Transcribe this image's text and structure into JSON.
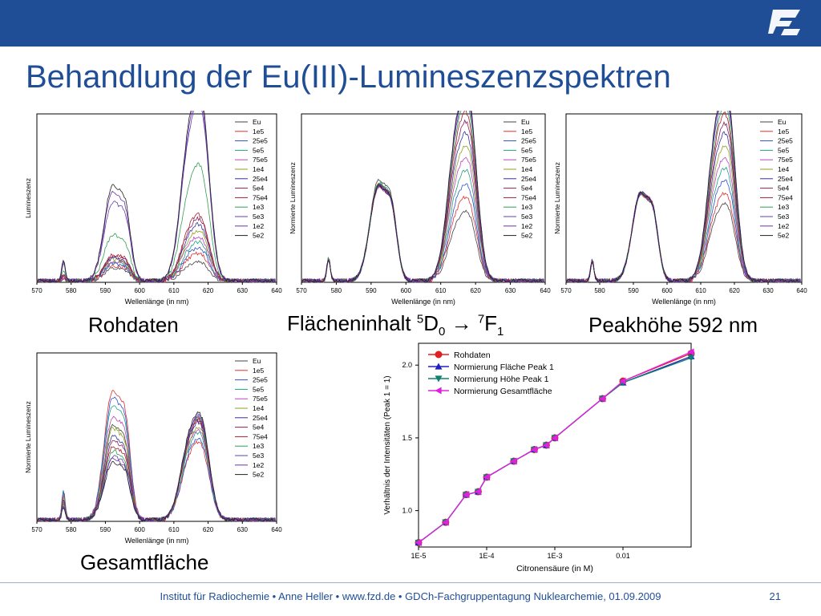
{
  "header": {
    "title": "Behandlung der Eu(III)-Lumineszenzspektren"
  },
  "captions": {
    "raw": "Rohdaten",
    "area_pre": "Flächeninhalt ",
    "area_d": "5",
    "area_mid": "D",
    "area_sub0": "0",
    "area_arrow": " → ",
    "area_f": "7",
    "area_F": "F",
    "area_sub1": "1",
    "height": "Peakhöhe 592 nm",
    "total": "Gesamtfläche"
  },
  "footer": {
    "text": "Institut für Radiochemie • Anne Heller • www.fzd.de • GDCh-Fachgruppentagung Nuklearchemie, 01.09.2009",
    "page": "21"
  },
  "colors": {
    "brand": "#1f4e96",
    "series": [
      "#444444",
      "#e03030",
      "#3050d0",
      "#20a080",
      "#c040c0",
      "#90a020",
      "#333399",
      "#8a2060",
      "#aa2030",
      "#30a050",
      "#6040b0",
      "#7030b0",
      "#222222"
    ]
  },
  "chart_data": [
    {
      "type": "line",
      "title": "",
      "xlabel": "Wellenlänge (in nm)",
      "ylabel": "Lumineszenz",
      "xlim": [
        570,
        640
      ],
      "xticks": [
        "570",
        "580",
        "590",
        "600",
        "610",
        "620",
        "630",
        "640"
      ],
      "legend_position": "top-right",
      "legend": [
        "Eu",
        "1e5",
        "25e5",
        "5e5",
        "75e5",
        "1e4",
        "25e4",
        "5e4",
        "75e4",
        "1e3",
        "5e3",
        "1e2",
        "5e2"
      ],
      "peak_592": [
        0.08,
        0.1,
        0.11,
        0.12,
        0.13,
        0.14,
        0.15,
        0.16,
        0.17,
        0.3,
        0.52,
        0.58,
        0.63
      ],
      "peak_616": [
        0.1,
        0.14,
        0.17,
        0.2,
        0.23,
        0.26,
        0.29,
        0.32,
        0.34,
        0.6,
        0.92,
        0.96,
        1.0
      ]
    },
    {
      "type": "line",
      "title": "",
      "xlabel": "Wellenlänge (in nm)",
      "ylabel": "Normierte Lumineszenz",
      "xlim": [
        570,
        640
      ],
      "xticks": [
        "570",
        "580",
        "590",
        "600",
        "610",
        "620",
        "630",
        "640"
      ],
      "legend_position": "top-right",
      "legend": [
        "Eu",
        "1e5",
        "25e5",
        "5e5",
        "75e5",
        "1e4",
        "25e4",
        "5e4",
        "75e4",
        "1e3",
        "5e3",
        "1e2",
        "5e2"
      ],
      "peak_592": [
        0.66,
        0.64,
        0.63,
        0.64,
        0.62,
        0.63,
        0.62,
        0.63,
        0.62,
        0.64,
        0.63,
        0.62,
        0.63
      ],
      "peak_616": [
        0.36,
        0.43,
        0.5,
        0.57,
        0.64,
        0.7,
        0.76,
        0.82,
        0.87,
        0.92,
        0.96,
        0.98,
        1.0
      ]
    },
    {
      "type": "line",
      "title": "",
      "xlabel": "Wellenlänge (in nm)",
      "ylabel": "Normierte Lumineszenz",
      "xlim": [
        570,
        640
      ],
      "xticks": [
        "570",
        "580",
        "590",
        "600",
        "610",
        "620",
        "630",
        "640"
      ],
      "legend_position": "top-right",
      "legend": [
        "Eu",
        "1e5",
        "25e5",
        "5e5",
        "75e5",
        "1e4",
        "25e4",
        "5e4",
        "75e4",
        "1e3",
        "5e3",
        "1e2",
        "5e2"
      ],
      "peak_592": [
        0.58,
        0.57,
        0.58,
        0.57,
        0.58,
        0.57,
        0.58,
        0.57,
        0.58,
        0.57,
        0.58,
        0.57,
        0.58
      ],
      "peak_616": [
        0.4,
        0.45,
        0.52,
        0.58,
        0.64,
        0.7,
        0.76,
        0.81,
        0.86,
        0.9,
        0.95,
        0.98,
        1.0
      ]
    },
    {
      "type": "line",
      "title": "",
      "xlabel": "Wellenlänge (in nm)",
      "ylabel": "Normierte Lumineszenz",
      "xlim": [
        570,
        640
      ],
      "xticks": [
        "570",
        "580",
        "590",
        "600",
        "610",
        "620",
        "630",
        "640"
      ],
      "legend_position": "top-right",
      "legend": [
        "Eu",
        "1e5",
        "25e5",
        "5e5",
        "75e5",
        "1e4",
        "25e4",
        "5e4",
        "75e4",
        "1e3",
        "5e3",
        "1e2",
        "5e2"
      ],
      "peak_592": [
        0.62,
        0.85,
        0.8,
        0.75,
        0.68,
        0.6,
        0.55,
        0.52,
        0.48,
        0.45,
        0.42,
        0.4,
        0.38
      ],
      "peak_616": [
        0.52,
        0.4,
        0.42,
        0.45,
        0.47,
        0.48,
        0.5,
        0.51,
        0.52,
        0.53,
        0.53,
        0.54,
        0.55
      ]
    },
    {
      "type": "line",
      "title": "",
      "xlabel": "Citronensäure (in M)",
      "ylabel": "Verhältnis der Intensitäten (Peak 1 = 1)",
      "xscale": "log",
      "xlim": [
        1e-05,
        0.1
      ],
      "ylim": [
        0.75,
        2.15
      ],
      "xticks": [
        "1E-5",
        "1E-4",
        "1E-3",
        "0.01"
      ],
      "xtick_values": [
        1e-05,
        0.0001,
        0.001,
        0.01
      ],
      "yticks": [
        "1.0",
        "1.5",
        "2.0"
      ],
      "ytick_values": [
        1.0,
        1.5,
        2.0
      ],
      "legend_position": "top-left",
      "x": [
        1e-05,
        2.5e-05,
        5e-05,
        7.5e-05,
        0.0001,
        0.00025,
        0.0005,
        0.00075,
        0.001,
        0.005,
        0.01,
        0.1
      ],
      "series": [
        {
          "name": "Rohdaten",
          "color": "#e02020",
          "marker": "circle",
          "values": [
            0.78,
            0.92,
            1.11,
            1.13,
            1.23,
            1.34,
            1.42,
            1.45,
            1.5,
            1.77,
            1.89,
            2.08
          ]
        },
        {
          "name": "Normierung Fläche Peak 1",
          "color": "#2020c0",
          "marker": "triangle-up",
          "values": [
            0.78,
            0.92,
            1.11,
            1.13,
            1.23,
            1.34,
            1.42,
            1.45,
            1.5,
            1.77,
            1.88,
            2.06
          ]
        },
        {
          "name": "Normierung Höhe Peak 1",
          "color": "#108070",
          "marker": "triangle-down",
          "values": [
            0.78,
            0.92,
            1.11,
            1.13,
            1.23,
            1.34,
            1.42,
            1.45,
            1.5,
            1.77,
            1.88,
            2.05
          ]
        },
        {
          "name": "Normierung Gesamtfläche",
          "color": "#e020e0",
          "marker": "triangle-left",
          "values": [
            0.78,
            0.92,
            1.11,
            1.13,
            1.23,
            1.34,
            1.42,
            1.45,
            1.5,
            1.77,
            1.89,
            2.09
          ]
        }
      ]
    }
  ]
}
